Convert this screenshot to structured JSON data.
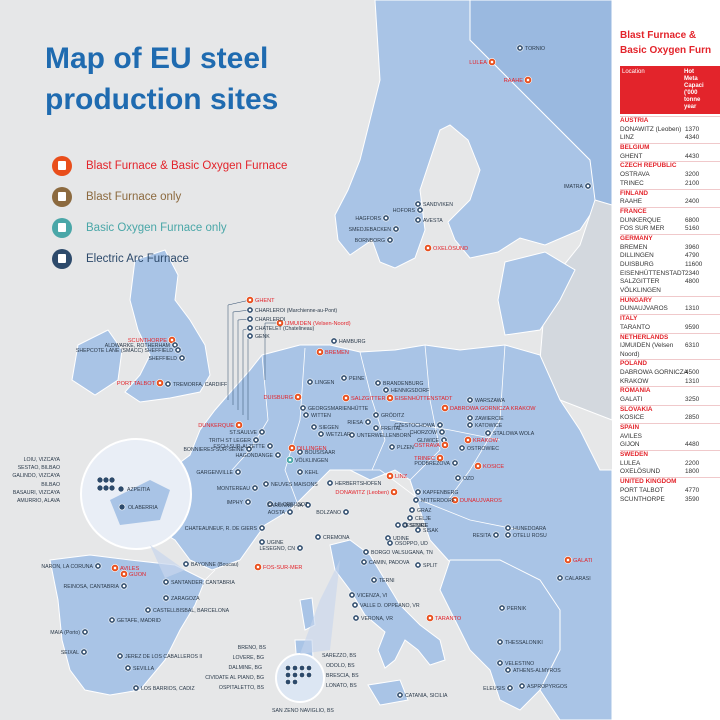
{
  "title": "Map of EU steel production sites",
  "legend": [
    {
      "label": "Blast Furnace &  Basic Oxygen Furnace",
      "color": "#e94e1b",
      "text_color": "#e3242b",
      "icon": "factory-red-icon"
    },
    {
      "label": "Blast Furnace only",
      "color": "#8c6a3f",
      "text_color": "#8c6a3f",
      "icon": "factory-brown-icon"
    },
    {
      "label": "Basic Oxygen Furnace only",
      "color": "#4aa7a8",
      "text_color": "#4aa7a8",
      "icon": "factory-teal-icon"
    },
    {
      "label": "Electric Arc Furnace",
      "color": "#2d4a6b",
      "text_color": "#2d4a6b",
      "icon": "factory-navy-icon"
    }
  ],
  "table": {
    "title_line1": "Blast Furnace &",
    "title_line2": "Basic Oxygen Furn",
    "col_location": "Location",
    "col_capacity": "Hot\nMeta\nCapaci\n('000\ntonne\nyear",
    "groups": [
      {
        "country": "AUSTRIA",
        "sites": [
          {
            "name": "DONAWITZ (Leoben)",
            "value": "1370"
          },
          {
            "name": "LINZ",
            "value": "4340"
          }
        ]
      },
      {
        "country": "BELGIUM",
        "sites": [
          {
            "name": "GHENT",
            "value": "4430"
          }
        ]
      },
      {
        "country": "CZECH REPUBLIC",
        "sites": [
          {
            "name": "OSTRAVA",
            "value": "3200"
          },
          {
            "name": "TRINEC",
            "value": "2100"
          }
        ]
      },
      {
        "country": "FINLAND",
        "sites": [
          {
            "name": "RAAHE",
            "value": "2400"
          }
        ]
      },
      {
        "country": "FRANCE",
        "sites": [
          {
            "name": "DUNKERQUE",
            "value": "6800"
          },
          {
            "name": "FOS SUR MER",
            "value": "5160"
          }
        ]
      },
      {
        "country": "GERMANY",
        "sites": [
          {
            "name": "BREMEN",
            "value": "3960"
          },
          {
            "name": "DILLINGEN",
            "value": "4790"
          },
          {
            "name": "DUISBURG",
            "value": "11600"
          },
          {
            "name": "EISENHÜTTENSTADT",
            "value": "2340"
          },
          {
            "name": "SALZGITTER",
            "value": "4800"
          },
          {
            "name": "VÖLKLINGEN",
            "value": ""
          }
        ]
      },
      {
        "country": "HUNGARY",
        "sites": [
          {
            "name": "DUNAUJVAROS",
            "value": "1310"
          }
        ]
      },
      {
        "country": "ITALY",
        "sites": [
          {
            "name": "TARANTO",
            "value": "9590"
          }
        ]
      },
      {
        "country": "NETHERLANDS",
        "sites": [
          {
            "name": "IJMUIDEN (Velsen Noord)",
            "value": "6310"
          }
        ]
      },
      {
        "country": "POLAND",
        "sites": [
          {
            "name": "DABROWA GORNICZA",
            "value": "4500"
          },
          {
            "name": "KRAKOW",
            "value": "1310"
          }
        ]
      },
      {
        "country": "ROMANIA",
        "sites": [
          {
            "name": "GALATI",
            "value": "3250"
          }
        ]
      },
      {
        "country": "SLOVAKIA",
        "sites": [
          {
            "name": "KOSICE",
            "value": "2850"
          }
        ]
      },
      {
        "country": "SPAIN",
        "sites": [
          {
            "name": "AVILES",
            "value": ""
          },
          {
            "name": "GIJON",
            "value": "4480"
          }
        ]
      },
      {
        "country": "SWEDEN",
        "sites": [
          {
            "name": "LULEA",
            "value": "2200"
          },
          {
            "name": "OXELÖSUND",
            "value": "1800"
          }
        ]
      },
      {
        "country": "UNITED KINGDOM",
        "sites": [
          {
            "name": "PORT TALBOT",
            "value": "4770"
          },
          {
            "name": "SCUNTHORPE",
            "value": "3590"
          }
        ]
      }
    ]
  },
  "sites": [
    {
      "name": "LULEA",
      "type": "bof",
      "dir": "left"
    },
    {
      "name": "RAAHE",
      "type": "bof",
      "dir": "left"
    },
    {
      "name": "TORNIO",
      "type": "eaf",
      "dir": "right"
    },
    {
      "name": "IMATRA",
      "type": "eaf",
      "dir": "left"
    },
    {
      "name": "SANDVIKEN",
      "type": "eaf",
      "dir": "right"
    },
    {
      "name": "HOFORS",
      "type": "eaf",
      "dir": "left"
    },
    {
      "name": "AVESTA",
      "type": "eaf",
      "dir": "right"
    },
    {
      "name": "HAGFORS",
      "type": "eaf",
      "dir": "left"
    },
    {
      "name": "SMEDJEBACKEN",
      "type": "eaf",
      "dir": "left"
    },
    {
      "name": "BORNBORG",
      "type": "eaf",
      "dir": "left"
    },
    {
      "name": "OXELÖSUND",
      "type": "bof",
      "dir": "right"
    },
    {
      "name": "SCUNTHORPE",
      "type": "bof",
      "dir": "left"
    },
    {
      "name": "ALDWARKE, ROTHERHAM",
      "type": "eaf",
      "dir": "left"
    },
    {
      "name": "SHEPCOTE LANE (SMACC) SHEFFIELD",
      "type": "eaf",
      "dir": "left"
    },
    {
      "name": "SHEFFIELD",
      "type": "eaf",
      "dir": "left"
    },
    {
      "name": "PORT TALBOT",
      "type": "bof",
      "dir": "left"
    },
    {
      "name": "TREMORFA, CARDIFF",
      "type": "eaf",
      "dir": "right"
    },
    {
      "name": "GHENT",
      "type": "bof",
      "dir": "right"
    },
    {
      "name": "CHARLEROI (Marchienne-au-Pont)",
      "type": "eaf",
      "dir": "right"
    },
    {
      "name": "CHARLEROI",
      "type": "eaf",
      "dir": "right"
    },
    {
      "name": "CHATELET (Chatelineau)",
      "type": "eaf",
      "dir": "right"
    },
    {
      "name": "GENK",
      "type": "eaf",
      "dir": "right"
    },
    {
      "name": "IJMUIDEN (Velsen-Noord)",
      "type": "bof",
      "dir": "right"
    },
    {
      "name": "HAMBURG",
      "type": "eaf",
      "dir": "right"
    },
    {
      "name": "BREMEN",
      "type": "bof",
      "dir": "right"
    },
    {
      "name": "PEINE",
      "type": "eaf",
      "dir": "right"
    },
    {
      "name": "SALZGITTER",
      "type": "bof",
      "dir": "right"
    },
    {
      "name": "BRANDENBURG",
      "type": "eaf",
      "dir": "right"
    },
    {
      "name": "HENNIGSDORF",
      "type": "eaf",
      "dir": "right"
    },
    {
      "name": "EISENHÜTTENSTADT",
      "type": "bof",
      "dir": "right"
    },
    {
      "name": "LINGEN",
      "type": "eaf",
      "dir": "right"
    },
    {
      "name": "GEORGSMARIENHÜTTE",
      "type": "eaf",
      "dir": "right"
    },
    {
      "name": "DUISBURG",
      "type": "bof",
      "dir": "left"
    },
    {
      "name": "WITTEN",
      "type": "eaf",
      "dir": "right"
    },
    {
      "name": "SIEGEN",
      "type": "eaf",
      "dir": "right"
    },
    {
      "name": "WETZLAR",
      "type": "eaf",
      "dir": "right"
    },
    {
      "name": "GRÖDITZ",
      "type": "eaf",
      "dir": "right"
    },
    {
      "name": "RIESA",
      "type": "eaf",
      "dir": "left"
    },
    {
      "name": "FREITAL",
      "type": "eaf",
      "dir": "right"
    },
    {
      "name": "UNTERWELLENBORN",
      "type": "eaf",
      "dir": "right"
    },
    {
      "name": "DUNKERQUE",
      "type": "bof",
      "dir": "left"
    },
    {
      "name": "ST.SAULVE",
      "type": "eaf",
      "dir": "left"
    },
    {
      "name": "ESCH-SUR-ALZETTE",
      "type": "eaf",
      "dir": "left"
    },
    {
      "name": "TRITH ST LEGER",
      "type": "eaf",
      "dir": "left"
    },
    {
      "name": "BONNIERES-SUR-SEINE",
      "type": "eaf",
      "dir": "left"
    },
    {
      "name": "HAGONDANGE",
      "type": "eaf",
      "dir": "left"
    },
    {
      "name": "DILLINGEN",
      "type": "bof",
      "dir": "right"
    },
    {
      "name": "BOUS/SAAR",
      "type": "eaf",
      "dir": "right"
    },
    {
      "name": "VÖLKLINGEN",
      "type": "bofonly",
      "dir": "right"
    },
    {
      "name": "GARGENVILLE",
      "type": "eaf",
      "dir": "left"
    },
    {
      "name": "KEHL",
      "type": "eaf",
      "dir": "right"
    },
    {
      "name": "MONTEREAU",
      "type": "eaf",
      "dir": "left"
    },
    {
      "name": "NEUVES MAISONS",
      "type": "eaf",
      "dir": "right"
    },
    {
      "name": "HERBERTSHOFEN",
      "type": "eaf",
      "dir": "right"
    },
    {
      "name": "IMPHY",
      "type": "eaf",
      "dir": "left"
    },
    {
      "name": "LE CREUSOT",
      "type": "eaf",
      "dir": "right"
    },
    {
      "name": "CHATEAUNEUF, R. DE GIERS",
      "type": "eaf",
      "dir": "left"
    },
    {
      "name": "UGINE",
      "type": "eaf",
      "dir": "right"
    },
    {
      "name": "FOS-SUR-MER",
      "type": "bof",
      "dir": "right"
    },
    {
      "name": "WARSZAWA",
      "type": "eaf",
      "dir": "right"
    },
    {
      "name": "DABROWA GORNICZA KRAKOW",
      "type": "bof",
      "dir": "right"
    },
    {
      "name": "ZAWIERCIE",
      "type": "eaf",
      "dir": "right"
    },
    {
      "name": "KATOWICE",
      "type": "eaf",
      "dir": "right"
    },
    {
      "name": "CZESTOCHOWA",
      "type": "eaf",
      "dir": "left"
    },
    {
      "name": "CHORZOW",
      "type": "eaf",
      "dir": "left"
    },
    {
      "name": "GLIWICE",
      "type": "eaf",
      "dir": "left"
    },
    {
      "name": "KRAKOW",
      "type": "bof",
      "dir": "right"
    },
    {
      "name": "STALOWA WOLA",
      "type": "eaf",
      "dir": "right"
    },
    {
      "name": "OSTRAVA",
      "type": "bof",
      "dir": "left"
    },
    {
      "name": "OSTROWIEC",
      "type": "eaf",
      "dir": "right"
    },
    {
      "name": "PLZEN",
      "type": "eaf",
      "dir": "right"
    },
    {
      "name": "TRINEC",
      "type": "bof",
      "dir": "left"
    },
    {
      "name": "PODBREZOVA",
      "type": "eaf",
      "dir": "left"
    },
    {
      "name": "KOSICE",
      "type": "bof",
      "dir": "right"
    },
    {
      "name": "OZD",
      "type": "eaf",
      "dir": "right"
    },
    {
      "name": "LINZ",
      "type": "bof",
      "dir": "right"
    },
    {
      "name": "DONAWITZ (Leoben)",
      "type": "bof",
      "dir": "left"
    },
    {
      "name": "KAPFENBERG",
      "type": "eaf",
      "dir": "right"
    },
    {
      "name": "MITTERDORF",
      "type": "eaf",
      "dir": "right"
    },
    {
      "name": "DUNAUJVAROS",
      "type": "bof",
      "dir": "right"
    },
    {
      "name": "GRAZ",
      "type": "eaf",
      "dir": "right"
    },
    {
      "name": "CELJE",
      "type": "eaf",
      "dir": "right"
    },
    {
      "name": "STORE",
      "type": "eaf",
      "dir": "right"
    },
    {
      "name": "JESENICE",
      "type": "eaf",
      "dir": "right"
    },
    {
      "name": "SISAK",
      "type": "eaf",
      "dir": "right"
    },
    {
      "name": "UDINE",
      "type": "eaf",
      "dir": "right"
    },
    {
      "name": "OSOPPO, UD",
      "type": "eaf",
      "dir": "right"
    },
    {
      "name": "BOLZANO",
      "type": "eaf",
      "dir": "left"
    },
    {
      "name": "AOSTA",
      "type": "eaf",
      "dir": "left"
    },
    {
      "name": "CARONNO, VA",
      "type": "eaf",
      "dir": "left"
    },
    {
      "name": "LESEGNO, CN",
      "type": "eaf",
      "dir": "left"
    },
    {
      "name": "CREMONA",
      "type": "eaf",
      "dir": "right"
    },
    {
      "name": "BORGO VALSUGANA, TN",
      "type": "eaf",
      "dir": "right"
    },
    {
      "name": "CAMIN, PADOVA",
      "type": "eaf",
      "dir": "right"
    },
    {
      "name": "SPLIT",
      "type": "eaf",
      "dir": "right"
    },
    {
      "name": "TERNI",
      "type": "eaf",
      "dir": "right"
    },
    {
      "name": "VICENZA, VI",
      "type": "eaf",
      "dir": "right"
    },
    {
      "name": "VALLE D. OPPEANO, VR",
      "type": "eaf",
      "dir": "right"
    },
    {
      "name": "VERONA, VR",
      "type": "eaf",
      "dir": "right"
    },
    {
      "name": "TARANTO",
      "type": "bof",
      "dir": "right"
    },
    {
      "name": "HUNEDOARA",
      "type": "eaf",
      "dir": "right"
    },
    {
      "name": "OTELU ROSU",
      "type": "eaf",
      "dir": "right"
    },
    {
      "name": "RESITA",
      "type": "eaf",
      "dir": "left"
    },
    {
      "name": "GALATI",
      "type": "bof",
      "dir": "right"
    },
    {
      "name": "CALARASI",
      "type": "eaf",
      "dir": "right"
    },
    {
      "name": "PERNIK",
      "type": "eaf",
      "dir": "right"
    },
    {
      "name": "THESSALONIKI",
      "type": "eaf",
      "dir": "right"
    },
    {
      "name": "VELESTINO",
      "type": "eaf",
      "dir": "right"
    },
    {
      "name": "ATHENS-ALMYROS",
      "type": "eaf",
      "dir": "right"
    },
    {
      "name": "ELEUSIS",
      "type": "eaf",
      "dir": "left"
    },
    {
      "name": "ASPROPYRGOS",
      "type": "eaf",
      "dir": "right"
    },
    {
      "name": "CATANIA, SICILIA",
      "type": "eaf",
      "dir": "right"
    },
    {
      "name": "NARON, LA CORUNA",
      "type": "eaf",
      "dir": "left"
    },
    {
      "name": "AVILES",
      "type": "bof",
      "dir": "right"
    },
    {
      "name": "GIJON",
      "type": "bof",
      "dir": "right"
    },
    {
      "name": "BAYONNE (Boucau)",
      "type": "eaf",
      "dir": "right"
    },
    {
      "name": "SANTANDER, CANTABRIA",
      "type": "eaf",
      "dir": "right"
    },
    {
      "name": "REINOSA, CANTABRIA",
      "type": "eaf",
      "dir": "left"
    },
    {
      "name": "ZARAGOZA",
      "type": "eaf",
      "dir": "right"
    },
    {
      "name": "CASTELLBISBAL, BARCELONA",
      "type": "eaf",
      "dir": "right"
    },
    {
      "name": "MAIA (Porto)",
      "type": "eaf",
      "dir": "left"
    },
    {
      "name": "GETAFE, MADRID",
      "type": "eaf",
      "dir": "right"
    },
    {
      "name": "SEIXAL",
      "type": "eaf",
      "dir": "left"
    },
    {
      "name": "JEREZ DE LOS CABALLEROS II",
      "type": "eaf",
      "dir": "right"
    },
    {
      "name": "SEVILLA",
      "type": "eaf",
      "dir": "right"
    },
    {
      "name": "LOS BARRIOS, CADIZ",
      "type": "eaf",
      "dir": "right"
    }
  ],
  "inset_spain": [
    "LOIU, VIZCAYA",
    "SESTAO, BILBAO",
    "GALINDO, VIZCAYA",
    "BILBAO",
    "BASAURI, VIZCAYA",
    "AMURRIO, ALAVA",
    "AZPEITIA",
    "OLABERRIA"
  ],
  "inset_italy": [
    "BRENO, BS",
    "LOVERE, BG",
    "DALMINE, BG",
    "CIVIDATE AL PIANO, BG",
    "OSPITALETTO, BS",
    "SAN ZENO NAVIGLIO, BS",
    "SAREZZO, BS",
    "ODOLO, BS",
    "BRESCIA, BS",
    "LONATO, BS"
  ],
  "colors": {
    "sea": "#e6e7e8",
    "land": "#a9c4e6",
    "land_dark": "#9ab9e0",
    "border": "#ffffff",
    "accent": "#e3242b"
  }
}
